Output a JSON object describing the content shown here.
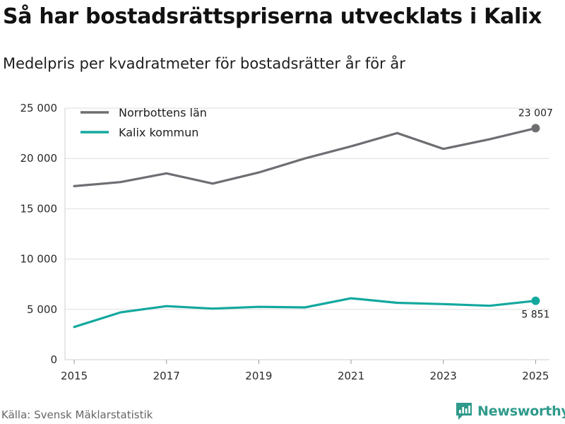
{
  "header": {
    "title": "Så har bostadsrättspriserna utvecklats i Kalix",
    "subtitle": "Medelpris per kvadratmeter för bostadsrätter år för år"
  },
  "chart_data": {
    "type": "line",
    "title": "Så har bostadsrättspriserna utvecklats i Kalix",
    "subtitle": "Medelpris per kvadratmeter för bostadsrätter år för år",
    "xlabel": "",
    "ylabel": "",
    "x": [
      2015,
      2016,
      2017,
      2018,
      2019,
      2020,
      2021,
      2022,
      2023,
      2024,
      2025
    ],
    "x_ticks": [
      "2015",
      "2017",
      "2019",
      "2021",
      "2023",
      "2025"
    ],
    "y_ticks": [
      "0",
      "5 000",
      "10 000",
      "15 000",
      "20 000",
      "25 000"
    ],
    "y_tick_values": [
      0,
      5000,
      10000,
      15000,
      20000,
      25000
    ],
    "ylim": [
      0,
      25000
    ],
    "xlim": [
      2014.8,
      2025.3
    ],
    "grid": "horizontal",
    "legend_position": "top-left",
    "series": [
      {
        "name": "Norrbottens län",
        "color": "#6e6e73",
        "values": [
          17250,
          17650,
          18520,
          17500,
          18600,
          20000,
          21200,
          22520,
          20950,
          21900,
          23007
        ],
        "end_label": "23 007"
      },
      {
        "name": "Kalix kommun",
        "color": "#13a89e",
        "values": [
          3250,
          4700,
          5320,
          5080,
          5250,
          5200,
          6100,
          5650,
          5530,
          5360,
          5851
        ],
        "end_label": "5 851"
      }
    ]
  },
  "footer": {
    "source": "Källa: Svensk Mäklarstatistik",
    "brand": "Newsworthy",
    "brand_color": "#2f9a8b"
  }
}
